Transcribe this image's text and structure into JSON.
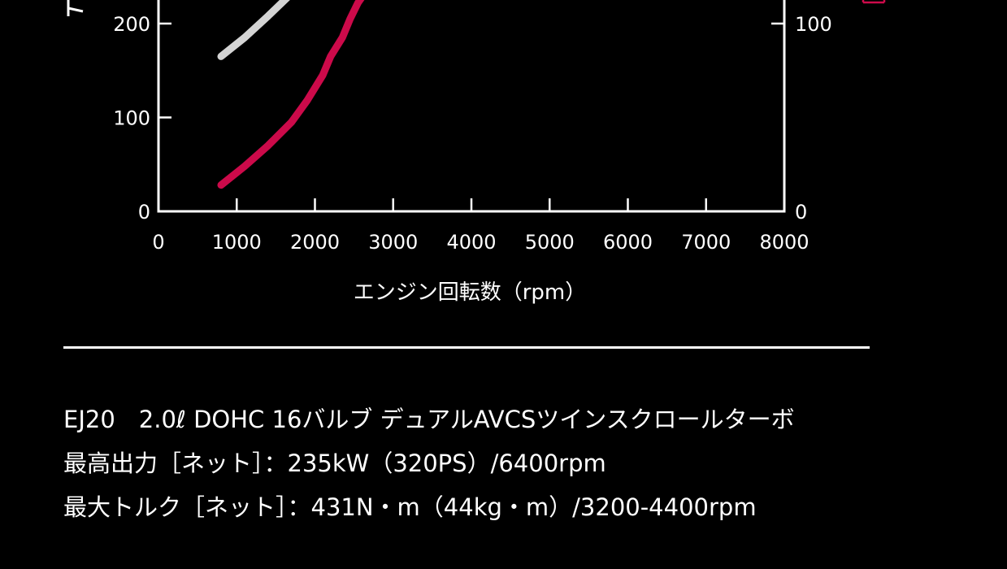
{
  "colors": {
    "background": "#000000",
    "axis": "#ffffff",
    "power": "#d4d4d4",
    "torque": "#cc0a4a"
  },
  "chart_data": {
    "type": "line",
    "xlabel": "エンジン回転数（rpm）",
    "xlim": [
      0,
      8000
    ],
    "x_ticks": [
      "0",
      "1000",
      "2000",
      "3000",
      "4000",
      "5000",
      "6000",
      "7000",
      "8000"
    ],
    "left_axis": {
      "ylim": [
        0,
        450
      ],
      "ticks": [
        "0",
        "100",
        "200"
      ]
    },
    "right_axis": {
      "ylim": [
        0,
        250
      ],
      "ticks": [
        "0",
        "100"
      ]
    },
    "series": [
      {
        "axis": "left",
        "color": "#d4d4d4",
        "points": [
          [
            800,
            165
          ],
          [
            1100,
            185
          ],
          [
            1400,
            208
          ],
          [
            1700,
            232
          ],
          [
            1650,
            228
          ]
        ]
      },
      {
        "axis": "left",
        "color": "#cc0a4a",
        "points": [
          [
            800,
            28
          ],
          [
            1100,
            48
          ],
          [
            1400,
            70
          ],
          [
            1700,
            95
          ],
          [
            1900,
            118
          ],
          [
            2100,
            145
          ],
          [
            2200,
            165
          ],
          [
            2350,
            185
          ],
          [
            2450,
            205
          ],
          [
            2550,
            222
          ],
          [
            2650,
            234
          ]
        ]
      }
    ]
  },
  "specs": {
    "line1": "EJ20　2.0ℓ DOHC 16バルブ デュアルAVCSツインスクロールターボ",
    "line2": "最高出力［ネット］：235kW（320PS）/6400rpm",
    "line3": "最大トルク［ネット］：431N・m（44kg・m）/3200-4400rpm"
  }
}
